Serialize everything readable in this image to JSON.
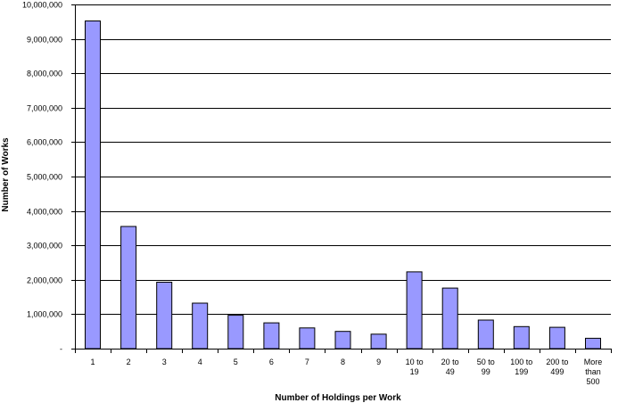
{
  "chart_data": {
    "type": "bar",
    "title": "",
    "xlabel": "Number of Holdings per Work",
    "ylabel": "Number of Works",
    "ylim": [
      0,
      10000000
    ],
    "yticks": [
      0,
      1000000,
      2000000,
      3000000,
      4000000,
      5000000,
      6000000,
      7000000,
      8000000,
      9000000,
      10000000
    ],
    "ytick_labels": [
      "-",
      "1,000,000",
      "2,000,000",
      "3,000,000",
      "4,000,000",
      "5,000,000",
      "6,000,000",
      "7,000,000",
      "8,000,000",
      "9,000,000",
      "10,000,000"
    ],
    "categories": [
      "1",
      "2",
      "3",
      "4",
      "5",
      "6",
      "7",
      "8",
      "9",
      "10 to 19",
      "20 to 49",
      "50 to 99",
      "100 to 199",
      "200 to 499",
      "More than 500"
    ],
    "category_lines": [
      [
        "1"
      ],
      [
        "2"
      ],
      [
        "3"
      ],
      [
        "4"
      ],
      [
        "5"
      ],
      [
        "6"
      ],
      [
        "7"
      ],
      [
        "8"
      ],
      [
        "9"
      ],
      [
        "10 to",
        "19"
      ],
      [
        "20 to",
        "49"
      ],
      [
        "50 to",
        "99"
      ],
      [
        "100 to",
        "199"
      ],
      [
        "200 to",
        "499"
      ],
      [
        "More",
        "than",
        "500"
      ]
    ],
    "values": [
      9520000,
      3550000,
      1930000,
      1320000,
      970000,
      750000,
      600000,
      500000,
      420000,
      2230000,
      1760000,
      830000,
      640000,
      620000,
      300000
    ],
    "grid": true,
    "legend": "none",
    "bar_color": "#9999ff",
    "bar_edge_color": "#000000",
    "grid_color": "#000000"
  }
}
